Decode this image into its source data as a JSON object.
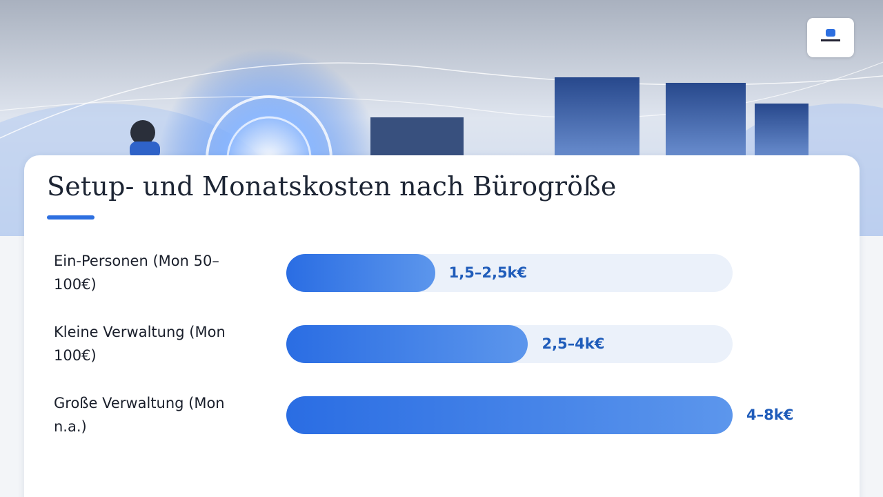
{
  "chart_data": {
    "type": "bar",
    "orientation": "horizontal",
    "title": "Setup- und Monatskosten nach Bürogröße",
    "categories": [
      "Ein-Personen (Mon 50–100€)",
      "Kleine Verwaltung (Mon 100€)",
      "Große Verwaltung (Mon n.a.)"
    ],
    "values": [
      2,
      3.25,
      6
    ],
    "value_labels": [
      "1,5–2,5k€",
      "2,5–4k€",
      "4–8k€"
    ],
    "color": "#2a6de3",
    "xlim": [
      0,
      6
    ]
  }
}
